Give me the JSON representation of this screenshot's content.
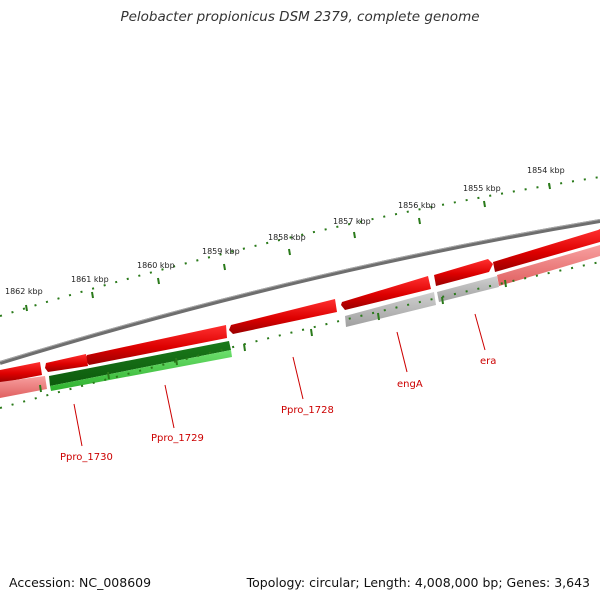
{
  "title": "Pelobacter propionicus DSM 2379, complete genome",
  "footer": {
    "accession": "Accession: NC_008609",
    "summary": "Topology: circular; Length: 4,008,000 bp; Genes: 3,643"
  },
  "ruler": {
    "unit": "kbp",
    "labels": [
      "1854 kbp",
      "1855 kbp",
      "1856 kbp",
      "1857 kbp",
      "1858 kbp",
      "1859 kbp",
      "1860 kbp",
      "1861 kbp",
      "1862 kbp"
    ]
  },
  "genes": [
    {
      "name": "Ppro_1730"
    },
    {
      "name": "Ppro_1729"
    },
    {
      "name": "Ppro_1728"
    },
    {
      "name": "engA"
    },
    {
      "name": "era"
    }
  ],
  "colors": {
    "forward_gene": "#dd0000",
    "reverse_gene": "#1f8a1f",
    "rna_gene": "#b0b0b0",
    "backbone": "#707070",
    "ruler_ticks": "#2a7a1a",
    "gene_label": "#cc0000"
  }
}
